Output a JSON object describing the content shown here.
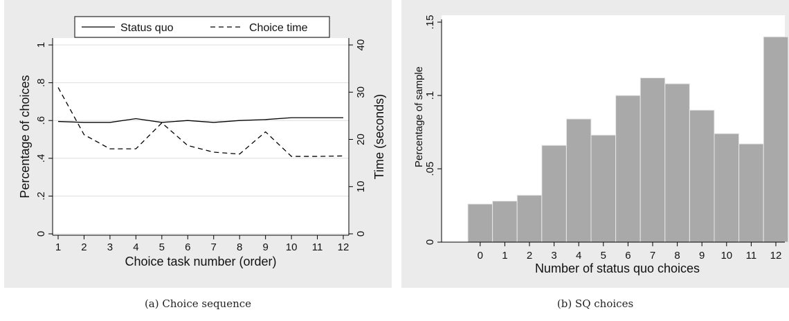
{
  "captions": {
    "a": "(a)  Choice sequence",
    "b": "(b)  SQ choices"
  },
  "chart_data": [
    {
      "type": "line",
      "xlabel": "Choice task number (order)",
      "ylabel": "Percentage of choices",
      "y2label": "Time (seconds)",
      "x": [
        1,
        2,
        3,
        4,
        5,
        6,
        7,
        8,
        9,
        10,
        11,
        12
      ],
      "xticks": [
        "1",
        "2",
        "3",
        "4",
        "5",
        "6",
        "7",
        "8",
        "9",
        "10",
        "11",
        "12"
      ],
      "ylim": [
        0,
        1
      ],
      "yticks": [
        "0",
        ".2",
        ".4",
        ".6",
        ".8",
        "1"
      ],
      "y2lim": [
        0,
        40
      ],
      "y2ticks": [
        "0",
        "10",
        "20",
        "30",
        "40"
      ],
      "grid": true,
      "legend": "top",
      "series": [
        {
          "name": "Status quo",
          "axis": "left",
          "style": "solid",
          "values": [
            0.595,
            0.59,
            0.59,
            0.61,
            0.59,
            0.6,
            0.59,
            0.6,
            0.605,
            0.615,
            0.615,
            0.615
          ]
        },
        {
          "name": "Choice time",
          "axis": "right",
          "style": "dashed",
          "values": [
            31,
            21,
            18,
            18,
            23.5,
            18.7,
            17.3,
            16.9,
            21.6,
            16.4,
            16.4,
            16.5
          ]
        }
      ]
    },
    {
      "type": "bar",
      "xlabel": "Number of status quo choices",
      "ylabel": "Percentage of sample",
      "categories": [
        "0",
        "1",
        "2",
        "3",
        "4",
        "5",
        "6",
        "7",
        "8",
        "9",
        "10",
        "11",
        "12"
      ],
      "values": [
        0.026,
        0.028,
        0.032,
        0.066,
        0.084,
        0.073,
        0.1,
        0.112,
        0.108,
        0.09,
        0.074,
        0.067,
        0.14
      ],
      "ylim": [
        0,
        0.15
      ],
      "yticks": [
        "0",
        ".05",
        ".1",
        ".15"
      ],
      "grid": false,
      "colors": {
        "bar": "#a9a9a9",
        "bar_edge": "#e8e8e8"
      }
    }
  ]
}
